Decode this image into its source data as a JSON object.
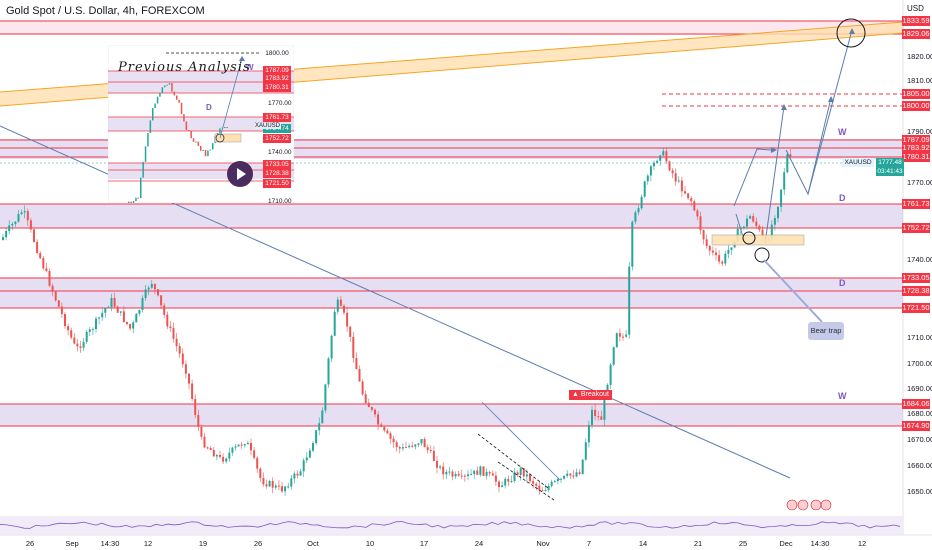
{
  "header": {
    "title": "Gold Spot / U.S. Dollar, 4h, FOREXCOM",
    "currency": "USD"
  },
  "price_labels": [
    {
      "value": "1833.59"
    },
    {
      "value": "1829.06"
    },
    {
      "value": "1805.00"
    },
    {
      "value": "1800.00"
    },
    {
      "value": "1787.09"
    },
    {
      "value": "1783.92"
    },
    {
      "value": "1780.31"
    },
    {
      "value": "1761.73"
    },
    {
      "value": "1752.72"
    },
    {
      "value": "1733.05"
    },
    {
      "value": "1728.38"
    },
    {
      "value": "1721.50"
    },
    {
      "value": "1684.06"
    },
    {
      "value": "1674.90"
    }
  ],
  "axis_labels": [
    "1820.00",
    "1810.00",
    "1790.00",
    "1770.00",
    "1740.00",
    "1710.00",
    "1700.00",
    "1690.00",
    "1680.00",
    "1670.00",
    "1660.00",
    "1650.00"
  ],
  "current_price": {
    "symbol": "XAUUSD",
    "price": "1777.48",
    "countdown": "03:41:43"
  },
  "date_labels": [
    "26",
    "Sep",
    "14:30",
    "12",
    "19",
    "26",
    "Oct",
    "10",
    "17",
    "24",
    "Nov",
    "7",
    "14",
    "21",
    "25",
    "Dec",
    "14:30",
    "12"
  ],
  "annotations": {
    "wave_labels": [
      "W",
      "D",
      "D",
      "W"
    ],
    "bear_trap": "Bear trap",
    "breakout": "Breakout"
  },
  "inset": {
    "title": "Previous Analysis",
    "symbol": "XAUUSD",
    "price_labels": [
      "1800.00",
      "1787.09",
      "1783.92",
      "1780.31",
      "1761.73",
      "1754.74",
      "1752.72",
      "1733.05",
      "1728.38",
      "1721.50"
    ],
    "axis_labels": [
      "1770.00",
      "1740.00",
      "1710.00"
    ],
    "wave_labels": [
      "W",
      "D"
    ]
  },
  "colors": {
    "bull": "#26a69a",
    "bear": "#ef5350",
    "zone_fill": "#d1c4e9",
    "level_line": "#f23645",
    "trend_band": "#ffe0b2",
    "accent_label": "#f23645"
  }
}
